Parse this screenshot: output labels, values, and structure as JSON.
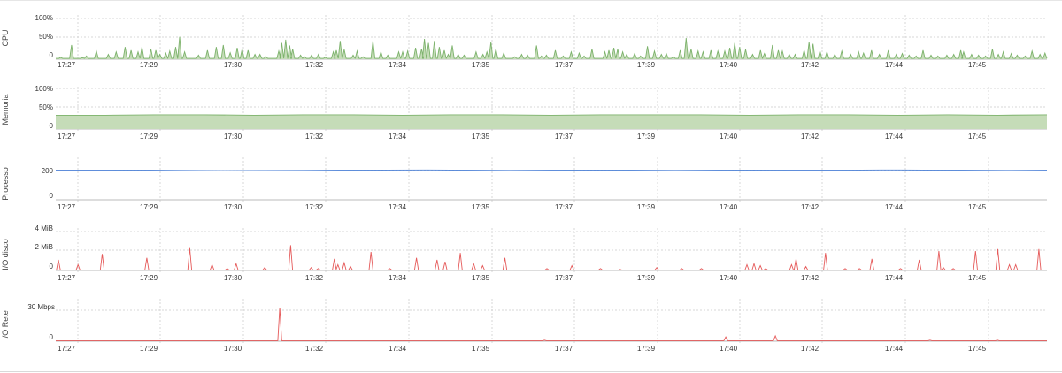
{
  "chart_data": [
    {
      "type": "area",
      "ylabel": "CPU",
      "unit": "%",
      "yticks": [
        "100%",
        "50%",
        "0"
      ],
      "ylim": [
        0,
        100
      ],
      "xticks": [
        "17:27",
        "17:29",
        "17:30",
        "17:32",
        "17:34",
        "17:35",
        "17:37",
        "17:39",
        "17:40",
        "17:42",
        "17:44",
        "17:45"
      ],
      "x_range": [
        "17:26:30",
        "17:46:30"
      ],
      "baseline": 2,
      "series": [
        {
          "color": "#7cb26b",
          "fill": "#c5dcb8",
          "peaks": [
            [
              0.5,
              5
            ],
            [
              1.6,
              35
            ],
            [
              2.7,
              4
            ],
            [
              3.1,
              8
            ],
            [
              4.1,
              20
            ],
            [
              5.3,
              12
            ],
            [
              6.1,
              18
            ],
            [
              7.0,
              30
            ],
            [
              7.6,
              22
            ],
            [
              8.3,
              18
            ],
            [
              8.7,
              30
            ],
            [
              9.6,
              25
            ],
            [
              10.1,
              22
            ],
            [
              10.5,
              12
            ],
            [
              11.1,
              15
            ],
            [
              11.5,
              20
            ],
            [
              12.1,
              30
            ],
            [
              12.5,
              55
            ],
            [
              13.0,
              18
            ],
            [
              14.4,
              10
            ],
            [
              15.3,
              22
            ],
            [
              16.2,
              30
            ],
            [
              16.9,
              35
            ],
            [
              17.6,
              16
            ],
            [
              18.3,
              28
            ],
            [
              18.8,
              25
            ],
            [
              19.4,
              22
            ],
            [
              20.1,
              12
            ],
            [
              20.6,
              12
            ],
            [
              21.2,
              6
            ],
            [
              22.5,
              20
            ],
            [
              22.8,
              40
            ],
            [
              23.2,
              48
            ],
            [
              23.6,
              34
            ],
            [
              23.9,
              25
            ],
            [
              24.7,
              10
            ],
            [
              25.1,
              6
            ],
            [
              25.8,
              10
            ],
            [
              26.5,
              12
            ],
            [
              27.2,
              5
            ],
            [
              28.0,
              18
            ],
            [
              28.3,
              22
            ],
            [
              28.7,
              45
            ],
            [
              29.1,
              24
            ],
            [
              30.0,
              10
            ],
            [
              30.4,
              20
            ],
            [
              31.0,
              6
            ],
            [
              32.0,
              45
            ],
            [
              32.8,
              18
            ],
            [
              33.5,
              10
            ],
            [
              34.6,
              18
            ],
            [
              35.0,
              18
            ],
            [
              35.5,
              20
            ],
            [
              36.3,
              28
            ],
            [
              36.9,
              25
            ],
            [
              37.2,
              50
            ],
            [
              37.6,
              40
            ],
            [
              38.2,
              45
            ],
            [
              38.7,
              30
            ],
            [
              39.2,
              22
            ],
            [
              39.6,
              12
            ],
            [
              40.0,
              34
            ],
            [
              40.6,
              12
            ],
            [
              41.2,
              10
            ],
            [
              42.4,
              18
            ],
            [
              43.1,
              12
            ],
            [
              43.5,
              18
            ],
            [
              43.9,
              42
            ],
            [
              44.4,
              25
            ],
            [
              45.2,
              15
            ],
            [
              46.3,
              6
            ],
            [
              47.0,
              12
            ],
            [
              47.6,
              10
            ],
            [
              48.5,
              34
            ],
            [
              49.0,
              8
            ],
            [
              49.5,
              10
            ],
            [
              50.4,
              22
            ],
            [
              51.2,
              8
            ],
            [
              52.0,
              18
            ],
            [
              52.8,
              15
            ],
            [
              53.3,
              8
            ],
            [
              54.1,
              25
            ],
            [
              55.4,
              18
            ],
            [
              55.8,
              22
            ],
            [
              56.3,
              28
            ],
            [
              56.7,
              25
            ],
            [
              57.2,
              18
            ],
            [
              57.6,
              12
            ],
            [
              58.4,
              14
            ],
            [
              59.0,
              8
            ],
            [
              59.7,
              32
            ],
            [
              60.4,
              20
            ],
            [
              61.1,
              12
            ],
            [
              61.6,
              14
            ],
            [
              62.3,
              6
            ],
            [
              63.0,
              22
            ],
            [
              63.6,
              52
            ],
            [
              64.1,
              25
            ],
            [
              64.8,
              20
            ],
            [
              65.3,
              18
            ],
            [
              66.1,
              22
            ],
            [
              66.8,
              20
            ],
            [
              67.5,
              20
            ],
            [
              68.0,
              28
            ],
            [
              68.5,
              40
            ],
            [
              69.0,
              30
            ],
            [
              69.6,
              24
            ],
            [
              70.3,
              12
            ],
            [
              71.1,
              22
            ],
            [
              71.5,
              14
            ],
            [
              72.3,
              35
            ],
            [
              72.9,
              22
            ],
            [
              73.3,
              20
            ],
            [
              74.0,
              12
            ],
            [
              74.6,
              12
            ],
            [
              75.5,
              22
            ],
            [
              76.0,
              42
            ],
            [
              76.4,
              38
            ],
            [
              77.1,
              20
            ],
            [
              77.8,
              18
            ],
            [
              78.6,
              12
            ],
            [
              79.3,
              20
            ],
            [
              80.2,
              12
            ],
            [
              81.0,
              18
            ],
            [
              81.5,
              15
            ],
            [
              82.3,
              22
            ],
            [
              83.1,
              12
            ],
            [
              84.0,
              22
            ],
            [
              84.8,
              12
            ],
            [
              85.4,
              14
            ],
            [
              86.1,
              10
            ],
            [
              86.8,
              8
            ],
            [
              87.5,
              22
            ],
            [
              88.3,
              10
            ],
            [
              89.0,
              8
            ],
            [
              89.9,
              10
            ],
            [
              90.6,
              12
            ],
            [
              91.3,
              22
            ],
            [
              91.6,
              18
            ],
            [
              92.4,
              12
            ],
            [
              93.1,
              10
            ],
            [
              93.8,
              8
            ],
            [
              94.5,
              25
            ],
            [
              95.1,
              12
            ],
            [
              95.6,
              18
            ],
            [
              96.4,
              14
            ],
            [
              97.0,
              10
            ],
            [
              97.8,
              8
            ],
            [
              98.5,
              20
            ],
            [
              99.3,
              12
            ],
            [
              99.8,
              15
            ]
          ]
        }
      ]
    },
    {
      "type": "area",
      "ylabel": "Memoria",
      "unit": "%",
      "yticks": [
        "100%",
        "50%",
        "0"
      ],
      "ylim": [
        0,
        100
      ],
      "xticks": [
        "17:27",
        "17:29",
        "17:30",
        "17:32",
        "17:34",
        "17:35",
        "17:37",
        "17:39",
        "17:40",
        "17:42",
        "17:44",
        "17:45"
      ],
      "x_range": [
        "17:26:30",
        "17:46:30"
      ],
      "series": [
        {
          "color": "#7cb26b",
          "fill": "#c5dcb8",
          "values": [
            34,
            34,
            35,
            35,
            34,
            35,
            35,
            34,
            35,
            35,
            34,
            35,
            35,
            35,
            34,
            35,
            35,
            34,
            35,
            34,
            35
          ]
        }
      ]
    },
    {
      "type": "line",
      "ylabel": "Processo",
      "yticks": [
        "200",
        "0"
      ],
      "ylim": [
        0,
        270
      ],
      "xticks": [
        "17:27",
        "17:29",
        "17:30",
        "17:32",
        "17:34",
        "17:35",
        "17:37",
        "17:39",
        "17:40",
        "17:42",
        "17:44",
        "17:45"
      ],
      "x_range": [
        "17:26:30",
        "17:46:30"
      ],
      "series": [
        {
          "color": "#4a7fd6",
          "values": [
            205,
            205,
            206,
            204,
            202,
            203,
            204,
            205,
            206,
            207,
            205,
            204,
            205,
            206,
            205,
            204,
            205,
            206,
            205,
            205,
            207,
            206,
            205,
            204,
            205
          ]
        }
      ]
    },
    {
      "type": "line",
      "ylabel": "I/O disco",
      "yticks": [
        "4 MiB",
        "2 MiB",
        "0"
      ],
      "ylim": [
        0,
        4
      ],
      "xticks": [
        "17:27",
        "17:29",
        "17:30",
        "17:32",
        "17:34",
        "17:35",
        "17:37",
        "17:39",
        "17:40",
        "17:42",
        "17:44",
        "17:45"
      ],
      "x_range": [
        "17:26:30",
        "17:46:30"
      ],
      "baseline": 0.05,
      "series": [
        {
          "color": "#e55a5a",
          "peaks": [
            [
              0.3,
              1.1
            ],
            [
              2.5,
              0.6
            ],
            [
              5.2,
              1.7
            ],
            [
              10.2,
              1.3
            ],
            [
              15.0,
              2.3
            ],
            [
              17.5,
              0.6
            ],
            [
              19.2,
              0.2
            ],
            [
              20.2,
              0.7
            ],
            [
              23.4,
              0.3
            ],
            [
              26.3,
              2.6
            ],
            [
              28.6,
              0.3
            ],
            [
              29.4,
              0.2
            ],
            [
              31.2,
              1.2
            ],
            [
              31.6,
              0.6
            ],
            [
              32.3,
              0.8
            ],
            [
              33.0,
              0.4
            ],
            [
              35.3,
              1.9
            ],
            [
              37.4,
              0.2
            ],
            [
              40.4,
              1.3
            ],
            [
              42.7,
              1.1
            ],
            [
              43.6,
              0.9
            ],
            [
              45.3,
              1.8
            ],
            [
              46.8,
              0.7
            ],
            [
              47.8,
              0.5
            ],
            [
              50.3,
              1.3
            ],
            [
              55.0,
              0.2
            ],
            [
              57.8,
              0.5
            ],
            [
              61.0,
              0.2
            ],
            [
              63.2,
              0.1
            ],
            [
              67.3,
              0.3
            ],
            [
              70.1,
              0.2
            ],
            [
              72.3,
              0.2
            ],
            [
              77.4,
              0.6
            ],
            [
              78.2,
              0.7
            ],
            [
              78.9,
              0.5
            ],
            [
              79.5,
              0.2
            ],
            [
              82.4,
              0.6
            ],
            [
              82.9,
              1.2
            ],
            [
              84.0,
              0.4
            ],
            [
              86.2,
              1.8
            ],
            [
              88.4,
              0.2
            ],
            [
              90.0,
              0.2
            ],
            [
              91.4,
              1.2
            ],
            [
              94.6,
              0.2
            ],
            [
              96.7,
              1.1
            ],
            [
              98.9,
              2.0
            ],
            [
              99.4,
              0.3
            ],
            [
              100.5,
              0.2
            ],
            [
              103.0,
              2.0
            ],
            [
              105.5,
              2.2
            ],
            [
              106.8,
              0.6
            ],
            [
              107.5,
              0.6
            ],
            [
              110.1,
              2.2
            ]
          ]
        }
      ],
      "x_peak_scale": 111
    },
    {
      "type": "line",
      "ylabel": "I/O Rete",
      "yticks": [
        "30 Mbps",
        "0"
      ],
      "ylim": [
        0,
        36
      ],
      "xticks": [
        "17:27",
        "17:29",
        "17:30",
        "17:32",
        "17:34",
        "17:35",
        "17:37",
        "17:39",
        "17:40",
        "17:42",
        "17:44",
        "17:45"
      ],
      "x_range": [
        "17:26:30",
        "17:46:30"
      ],
      "baseline": 0.5,
      "series": [
        {
          "color": "#e55a5a",
          "peaks": [
            [
              22.6,
              31
            ],
            [
              67.6,
              4
            ],
            [
              72.6,
              5
            ],
            [
              49.3,
              1
            ],
            [
              88.2,
              1
            ],
            [
              95.0,
              1
            ]
          ]
        }
      ]
    }
  ]
}
